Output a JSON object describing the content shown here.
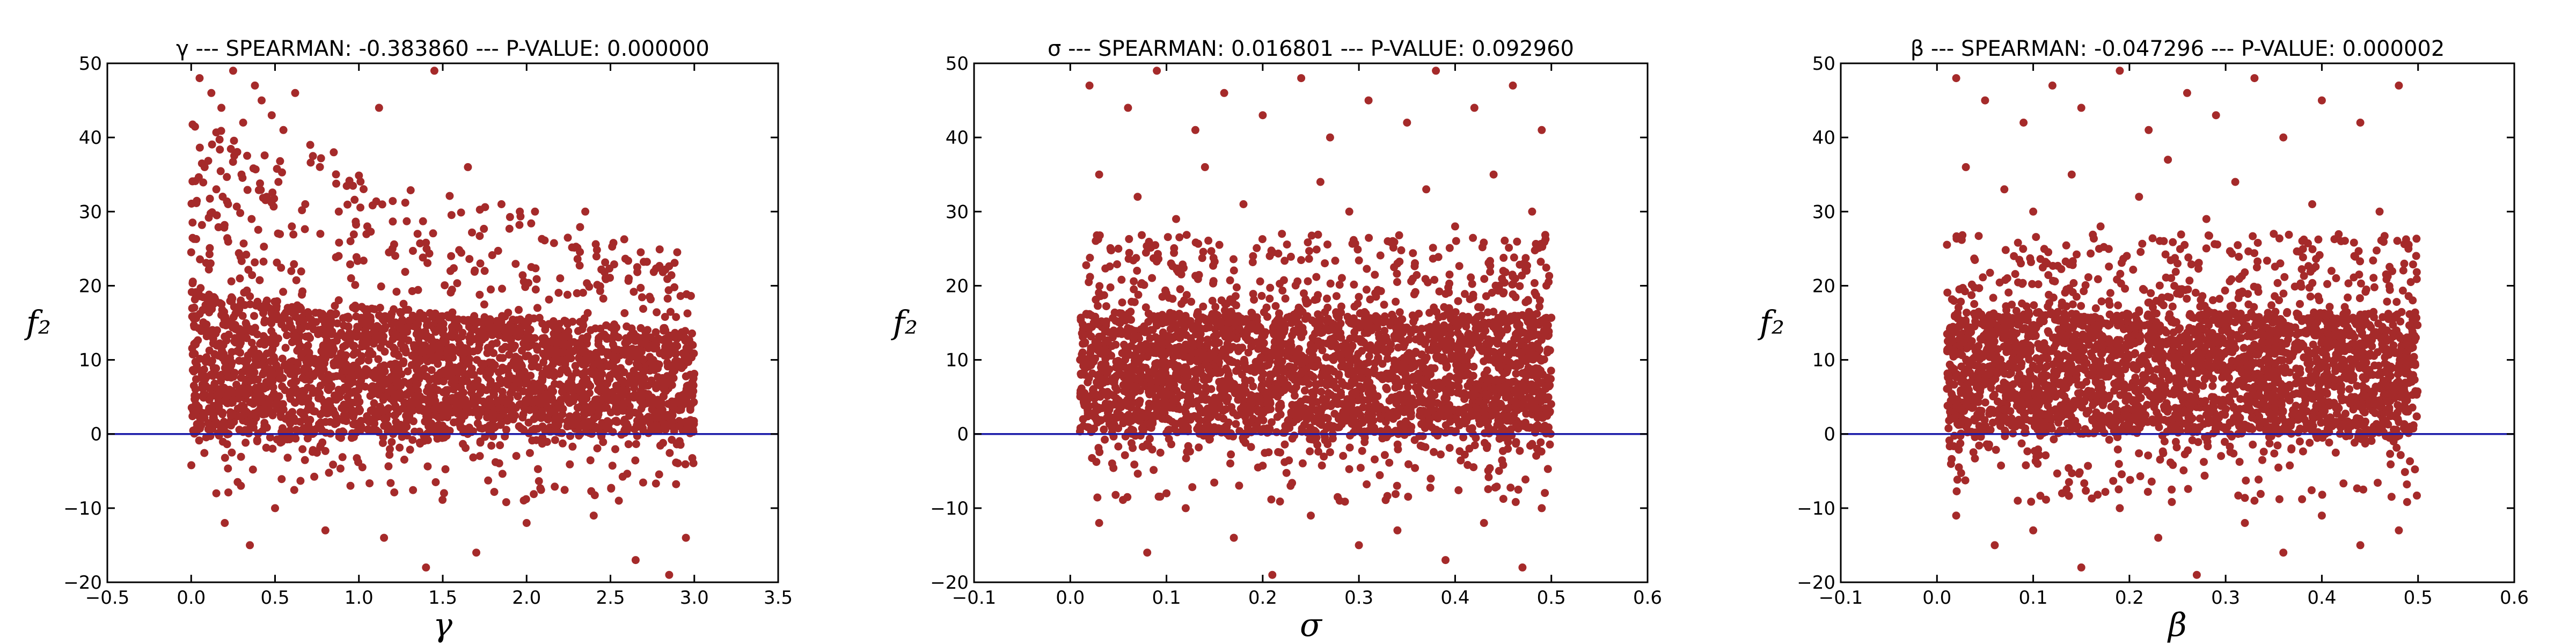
{
  "colors": {
    "points": "#a52a2a",
    "zero_line": "#1a1aa8"
  },
  "chart_data": [
    {
      "type": "scatter",
      "title": "γ --- SPEARMAN: -0.383860 --- P-VALUE: 0.000000",
      "xlabel": "γ",
      "ylabel": "f₂",
      "xlim": [
        -0.5,
        3.5
      ],
      "ylim": [
        -20,
        50
      ],
      "xticks": [
        -0.5,
        0.0,
        0.5,
        1.0,
        1.5,
        2.0,
        2.5,
        3.0,
        3.5
      ],
      "xtick_labels": [
        "−0.5",
        "0.0",
        "0.5",
        "1.0",
        "1.5",
        "2.0",
        "2.5",
        "3.0",
        "3.5"
      ],
      "yticks": [
        -20,
        -10,
        0,
        10,
        20,
        30,
        40,
        50
      ],
      "ytick_labels": [
        "−20",
        "−10",
        "0",
        "10",
        "20",
        "30",
        "40",
        "50"
      ],
      "hline": 0,
      "grid": false,
      "legend": "none",
      "x_range": [
        0.0,
        3.0
      ],
      "trend": "decreasing",
      "points": [
        [
          0.05,
          48
        ],
        [
          0.12,
          46
        ],
        [
          0.18,
          44
        ],
        [
          0.25,
          49
        ],
        [
          0.31,
          42
        ],
        [
          0.38,
          47
        ],
        [
          0.42,
          45
        ],
        [
          0.48,
          43
        ],
        [
          0.55,
          41
        ],
        [
          0.62,
          46
        ],
        [
          0.71,
          39
        ],
        [
          1.45,
          49
        ],
        [
          1.12,
          44
        ],
        [
          0.85,
          38
        ],
        [
          0.08,
          36
        ],
        [
          0.15,
          33
        ],
        [
          0.22,
          31
        ],
        [
          0.3,
          35
        ],
        [
          0.36,
          29
        ],
        [
          0.45,
          32
        ],
        [
          0.52,
          34
        ],
        [
          0.6,
          28
        ],
        [
          0.68,
          31
        ],
        [
          0.77,
          27
        ],
        [
          0.88,
          30
        ],
        [
          0.95,
          26
        ],
        [
          1.05,
          28
        ],
        [
          1.2,
          25
        ],
        [
          1.35,
          27
        ],
        [
          1.65,
          36
        ],
        [
          1.85,
          31
        ],
        [
          2.05,
          30
        ],
        [
          2.35,
          30
        ],
        [
          1.55,
          24
        ],
        [
          1.75,
          22
        ],
        [
          2.2,
          21
        ],
        [
          0.2,
          -12
        ],
        [
          0.35,
          -15
        ],
        [
          0.5,
          -10
        ],
        [
          0.8,
          -13
        ],
        [
          1.15,
          -14
        ],
        [
          1.4,
          -18
        ],
        [
          1.7,
          -16
        ],
        [
          2.0,
          -12
        ],
        [
          2.4,
          -11
        ],
        [
          2.65,
          -17
        ],
        [
          2.85,
          -19
        ],
        [
          2.95,
          -14
        ],
        [
          0.15,
          -8
        ],
        [
          2.55,
          -9
        ]
      ]
    },
    {
      "type": "scatter",
      "title": "σ --- SPEARMAN: 0.016801 --- P-VALUE: 0.092960",
      "xlabel": "σ",
      "ylabel": "f₂",
      "xlim": [
        -0.1,
        0.6
      ],
      "ylim": [
        -20,
        50
      ],
      "xticks": [
        -0.1,
        0.0,
        0.1,
        0.2,
        0.3,
        0.4,
        0.5,
        0.6
      ],
      "xtick_labels": [
        "−0.1",
        "0.0",
        "0.1",
        "0.2",
        "0.3",
        "0.4",
        "0.5",
        "0.6"
      ],
      "yticks": [
        -20,
        -10,
        0,
        10,
        20,
        30,
        40,
        50
      ],
      "ytick_labels": [
        "−20",
        "−10",
        "0",
        "10",
        "20",
        "30",
        "40",
        "50"
      ],
      "hline": 0,
      "grid": false,
      "legend": "none",
      "x_range": [
        0.01,
        0.5
      ],
      "trend": "flat",
      "points": [
        [
          0.02,
          47
        ],
        [
          0.06,
          44
        ],
        [
          0.09,
          49
        ],
        [
          0.13,
          41
        ],
        [
          0.16,
          46
        ],
        [
          0.2,
          43
        ],
        [
          0.24,
          48
        ],
        [
          0.27,
          40
        ],
        [
          0.31,
          45
        ],
        [
          0.35,
          42
        ],
        [
          0.38,
          49
        ],
        [
          0.42,
          44
        ],
        [
          0.46,
          47
        ],
        [
          0.49,
          41
        ],
        [
          0.03,
          35
        ],
        [
          0.07,
          32
        ],
        [
          0.11,
          29
        ],
        [
          0.14,
          36
        ],
        [
          0.18,
          31
        ],
        [
          0.22,
          27
        ],
        [
          0.26,
          34
        ],
        [
          0.29,
          30
        ],
        [
          0.33,
          26
        ],
        [
          0.37,
          33
        ],
        [
          0.4,
          28
        ],
        [
          0.44,
          35
        ],
        [
          0.48,
          30
        ],
        [
          0.05,
          25
        ],
        [
          0.19,
          24
        ],
        [
          0.34,
          23
        ],
        [
          0.45,
          22
        ],
        [
          0.03,
          -12
        ],
        [
          0.08,
          -16
        ],
        [
          0.12,
          -10
        ],
        [
          0.17,
          -14
        ],
        [
          0.21,
          -19
        ],
        [
          0.25,
          -11
        ],
        [
          0.3,
          -15
        ],
        [
          0.34,
          -13
        ],
        [
          0.39,
          -17
        ],
        [
          0.43,
          -12
        ],
        [
          0.47,
          -18
        ],
        [
          0.49,
          -10
        ],
        [
          0.1,
          -8
        ],
        [
          0.28,
          -9
        ]
      ]
    },
    {
      "type": "scatter",
      "title": "β --- SPEARMAN: -0.047296 --- P-VALUE: 0.000002",
      "xlabel": "β",
      "ylabel": "f₂",
      "xlim": [
        -0.1,
        0.6
      ],
      "ylim": [
        -20,
        50
      ],
      "xticks": [
        -0.1,
        0.0,
        0.1,
        0.2,
        0.3,
        0.4,
        0.5,
        0.6
      ],
      "xtick_labels": [
        "−0.1",
        "0.0",
        "0.1",
        "0.2",
        "0.3",
        "0.4",
        "0.5",
        "0.6"
      ],
      "yticks": [
        -20,
        -10,
        0,
        10,
        20,
        30,
        40,
        50
      ],
      "ytick_labels": [
        "−20",
        "−10",
        "0",
        "10",
        "20",
        "30",
        "40",
        "50"
      ],
      "hline": 0,
      "grid": false,
      "legend": "none",
      "x_range": [
        0.01,
        0.5
      ],
      "trend": "slightly decreasing",
      "points": [
        [
          0.02,
          48
        ],
        [
          0.05,
          45
        ],
        [
          0.09,
          42
        ],
        [
          0.12,
          47
        ],
        [
          0.15,
          44
        ],
        [
          0.19,
          49
        ],
        [
          0.22,
          41
        ],
        [
          0.26,
          46
        ],
        [
          0.29,
          43
        ],
        [
          0.33,
          48
        ],
        [
          0.36,
          40
        ],
        [
          0.4,
          45
        ],
        [
          0.44,
          42
        ],
        [
          0.48,
          47
        ],
        [
          0.03,
          36
        ],
        [
          0.07,
          33
        ],
        [
          0.1,
          30
        ],
        [
          0.14,
          35
        ],
        [
          0.17,
          28
        ],
        [
          0.21,
          32
        ],
        [
          0.24,
          37
        ],
        [
          0.28,
          29
        ],
        [
          0.31,
          34
        ],
        [
          0.35,
          27
        ],
        [
          0.39,
          31
        ],
        [
          0.42,
          26
        ],
        [
          0.46,
          30
        ],
        [
          0.49,
          25
        ],
        [
          0.08,
          24
        ],
        [
          0.25,
          23
        ],
        [
          0.41,
          22
        ],
        [
          0.02,
          -11
        ],
        [
          0.06,
          -15
        ],
        [
          0.1,
          -13
        ],
        [
          0.15,
          -18
        ],
        [
          0.19,
          -10
        ],
        [
          0.23,
          -14
        ],
        [
          0.27,
          -19
        ],
        [
          0.32,
          -12
        ],
        [
          0.36,
          -16
        ],
        [
          0.4,
          -11
        ],
        [
          0.44,
          -15
        ],
        [
          0.48,
          -13
        ],
        [
          0.13,
          -8
        ],
        [
          0.33,
          -9
        ]
      ]
    }
  ]
}
